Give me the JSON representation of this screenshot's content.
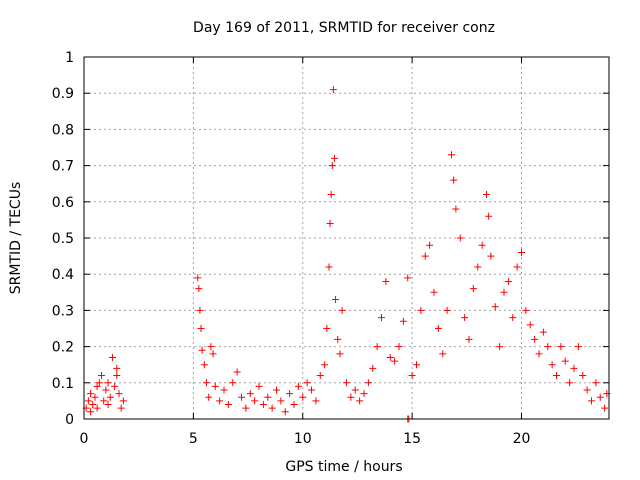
{
  "chart_data": {
    "type": "scatter",
    "title": "Day 169 of 2011, SRMTID for receiver conz",
    "xlabel": "GPS time / hours",
    "ylabel": "SRMTID / TECUs",
    "xlim": [
      0,
      24
    ],
    "ylim": [
      0,
      1
    ],
    "xticks": [
      0,
      5,
      10,
      15,
      20
    ],
    "xtick_labels": [
      "0",
      "5",
      "10",
      "15",
      "20"
    ],
    "yticks": [
      0,
      0.1,
      0.2,
      0.3,
      0.4,
      0.5,
      0.6,
      0.7,
      0.8,
      0.9,
      1
    ],
    "ytick_labels": [
      "0",
      "0.1",
      "0.2",
      "0.3",
      "0.4",
      "0.5",
      "0.6",
      "0.7",
      "0.8",
      "0.9",
      "1"
    ],
    "grid": true,
    "marker": "+",
    "color": "#ff0000",
    "series": [
      {
        "name": "SRMTID",
        "points": [
          [
            0.1,
            0.03
          ],
          [
            0.2,
            0.05
          ],
          [
            0.3,
            0.02
          ],
          [
            0.4,
            0.04
          ],
          [
            0.5,
            0.06
          ],
          [
            0.6,
            0.03
          ],
          [
            0.7,
            0.1
          ],
          [
            0.8,
            0.12
          ],
          [
            0.9,
            0.05
          ],
          [
            1.0,
            0.08
          ],
          [
            1.1,
            0.04
          ],
          [
            1.2,
            0.06
          ],
          [
            1.3,
            0.17
          ],
          [
            1.4,
            0.09
          ],
          [
            1.5,
            0.12
          ],
          [
            1.6,
            0.07
          ],
          [
            1.7,
            0.03
          ],
          [
            1.8,
            0.05
          ],
          [
            0.3,
            0.07
          ],
          [
            0.6,
            0.09
          ],
          [
            1.1,
            0.1
          ],
          [
            1.5,
            0.14
          ],
          [
            5.2,
            0.39
          ],
          [
            5.25,
            0.36
          ],
          [
            5.3,
            0.3
          ],
          [
            5.35,
            0.25
          ],
          [
            5.4,
            0.19
          ],
          [
            5.5,
            0.15
          ],
          [
            5.6,
            0.1
          ],
          [
            5.7,
            0.06
          ],
          [
            5.8,
            0.2
          ],
          [
            5.9,
            0.18
          ],
          [
            6.0,
            0.09
          ],
          [
            6.2,
            0.05
          ],
          [
            6.4,
            0.08
          ],
          [
            6.6,
            0.04
          ],
          [
            6.8,
            0.1
          ],
          [
            7.0,
            0.13
          ],
          [
            7.2,
            0.06
          ],
          [
            7.4,
            0.03
          ],
          [
            7.6,
            0.07
          ],
          [
            7.8,
            0.05
          ],
          [
            8.0,
            0.09
          ],
          [
            8.2,
            0.04
          ],
          [
            8.4,
            0.06
          ],
          [
            8.6,
            0.03
          ],
          [
            8.8,
            0.08
          ],
          [
            9.0,
            0.05
          ],
          [
            9.2,
            0.02
          ],
          [
            9.4,
            0.07
          ],
          [
            9.6,
            0.04
          ],
          [
            9.8,
            0.09
          ],
          [
            10.0,
            0.06
          ],
          [
            10.2,
            0.1
          ],
          [
            10.4,
            0.08
          ],
          [
            10.6,
            0.05
          ],
          [
            10.8,
            0.12
          ],
          [
            11.0,
            0.15
          ],
          [
            11.1,
            0.25
          ],
          [
            11.2,
            0.42
          ],
          [
            11.25,
            0.54
          ],
          [
            11.3,
            0.62
          ],
          [
            11.35,
            0.7
          ],
          [
            11.4,
            0.91
          ],
          [
            11.45,
            0.72
          ],
          [
            11.5,
            0.33
          ],
          [
            11.6,
            0.22
          ],
          [
            11.7,
            0.18
          ],
          [
            11.8,
            0.3
          ],
          [
            12.0,
            0.1
          ],
          [
            12.2,
            0.06
          ],
          [
            12.4,
            0.08
          ],
          [
            12.6,
            0.05
          ],
          [
            12.8,
            0.07
          ],
          [
            13.0,
            0.1
          ],
          [
            13.2,
            0.14
          ],
          [
            13.4,
            0.2
          ],
          [
            13.6,
            0.28
          ],
          [
            13.8,
            0.38
          ],
          [
            14.0,
            0.17
          ],
          [
            14.2,
            0.16
          ],
          [
            14.4,
            0.2
          ],
          [
            14.6,
            0.27
          ],
          [
            14.8,
            0.39
          ],
          [
            15.0,
            0.12
          ],
          [
            15.2,
            0.15
          ],
          [
            15.4,
            0.3
          ],
          [
            15.6,
            0.45
          ],
          [
            15.8,
            0.48
          ],
          [
            16.0,
            0.35
          ],
          [
            16.2,
            0.25
          ],
          [
            16.4,
            0.18
          ],
          [
            16.6,
            0.3
          ],
          [
            16.8,
            0.73
          ],
          [
            16.9,
            0.66
          ],
          [
            17.0,
            0.58
          ],
          [
            17.2,
            0.5
          ],
          [
            17.4,
            0.28
          ],
          [
            17.6,
            0.22
          ],
          [
            17.8,
            0.36
          ],
          [
            18.0,
            0.42
          ],
          [
            18.2,
            0.48
          ],
          [
            18.4,
            0.62
          ],
          [
            18.5,
            0.56
          ],
          [
            18.6,
            0.45
          ],
          [
            18.8,
            0.31
          ],
          [
            19.0,
            0.2
          ],
          [
            19.2,
            0.35
          ],
          [
            19.4,
            0.38
          ],
          [
            19.6,
            0.28
          ],
          [
            19.8,
            0.42
          ],
          [
            20.0,
            0.46
          ],
          [
            20.2,
            0.3
          ],
          [
            20.4,
            0.26
          ],
          [
            20.6,
            0.22
          ],
          [
            20.8,
            0.18
          ],
          [
            21.0,
            0.24
          ],
          [
            21.2,
            0.2
          ],
          [
            21.4,
            0.15
          ],
          [
            21.6,
            0.12
          ],
          [
            21.8,
            0.2
          ],
          [
            22.0,
            0.16
          ],
          [
            22.2,
            0.1
          ],
          [
            22.4,
            0.14
          ],
          [
            22.6,
            0.2
          ],
          [
            22.8,
            0.12
          ],
          [
            23.0,
            0.08
          ],
          [
            23.2,
            0.05
          ],
          [
            23.4,
            0.1
          ],
          [
            23.6,
            0.06
          ],
          [
            23.8,
            0.03
          ],
          [
            23.9,
            0.07
          ],
          [
            14.8,
            0.0
          ],
          [
            14.85,
            0.0
          ]
        ]
      }
    ]
  }
}
